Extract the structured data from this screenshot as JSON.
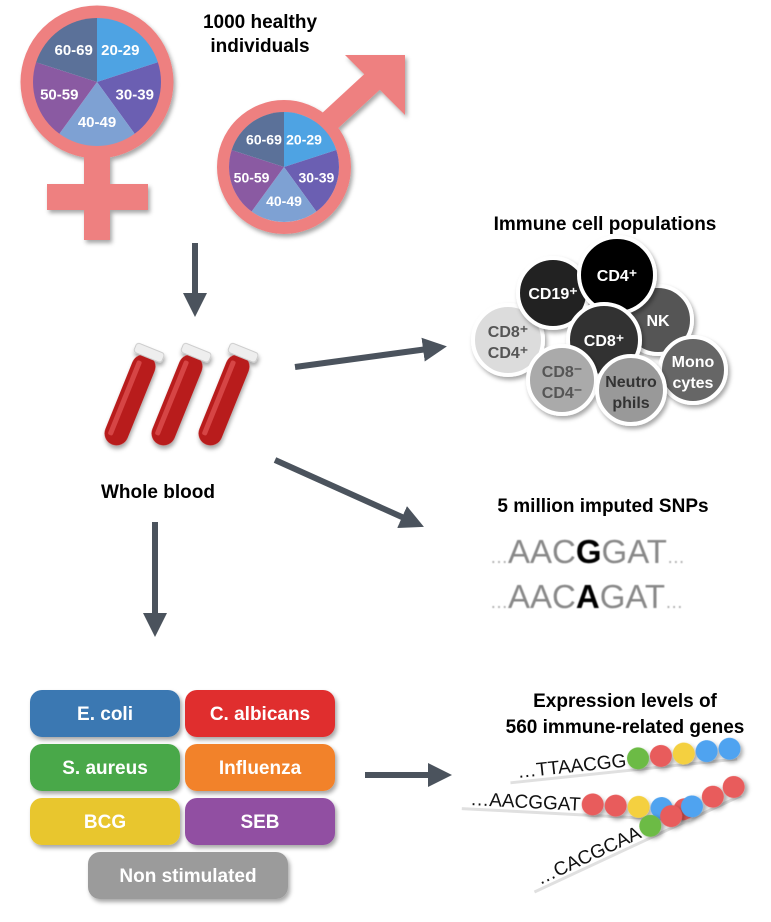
{
  "title": "1000 healthy individuals",
  "title_lines": [
    "1000 healthy",
    "individuals"
  ],
  "age_groups": [
    "20-29",
    "30-39",
    "40-49",
    "50-59",
    "60-69"
  ],
  "age_colors": [
    "#4ea3e3",
    "#6b5fb2",
    "#7ea1d3",
    "#8a5aa2",
    "#5b7199"
  ],
  "symbol_color": "#ee8080",
  "arrow_color": "#4b535d",
  "whole_blood_label": "Whole blood",
  "immune_cells": {
    "title": "Immune cell populations",
    "cells": [
      {
        "line1": "CD8⁺",
        "line2": "CD4⁺",
        "fill": "#dcdcdc",
        "text": "#555555"
      },
      {
        "line1": "CD19⁺",
        "line2": "",
        "fill": "#222222",
        "text": "#ffffff"
      },
      {
        "line1": "NK",
        "line2": "",
        "fill": "#555555",
        "text": "#ffffff"
      },
      {
        "line1": "CD4⁺",
        "line2": "",
        "fill": "#000000",
        "text": "#ffffff"
      },
      {
        "line1": "CD8⁺",
        "line2": "",
        "fill": "#333333",
        "text": "#ffffff"
      },
      {
        "line1": "CD8⁻",
        "line2": "CD4⁻",
        "fill": "#aaaaaa",
        "text": "#555555"
      },
      {
        "line1": "Mono",
        "line2": "cytes",
        "fill": "#666666",
        "text": "#ffffff"
      },
      {
        "line1": "Neutro",
        "line2": "phils",
        "fill": "#999999",
        "text": "#333333"
      }
    ]
  },
  "snps": {
    "title": "5 million imputed SNPs",
    "sequences": [
      {
        "prefix": "…",
        "before": "AAC",
        "variant": "G",
        "after": "GAT",
        "suffix": "…"
      },
      {
        "prefix": "…",
        "before": "AAC",
        "variant": "A",
        "after": "GAT",
        "suffix": "…"
      }
    ]
  },
  "stimuli": [
    {
      "label": "E. coli",
      "color": "#3b78b2"
    },
    {
      "label": "C. albicans",
      "color": "#e02e2e"
    },
    {
      "label": "S. aureus",
      "color": "#4aa84a"
    },
    {
      "label": "Influenza",
      "color": "#f2822c"
    },
    {
      "label": "BCG",
      "color": "#e8c62e"
    },
    {
      "label": "SEB",
      "color": "#9150a2"
    },
    {
      "label": "Non stimulated",
      "color": "#9b9b9b"
    }
  ],
  "expression": {
    "title_lines": [
      "Expression levels of",
      "560 immune-related genes"
    ],
    "genes": [
      {
        "sequence": "…TTAACGG",
        "beads": [
          "#6cbb45",
          "#e85c5c",
          "#f4d03f",
          "#4fa3f0",
          "#4fa3f0"
        ]
      },
      {
        "sequence": "…AACGGAT",
        "beads": [
          "#e85c5c",
          "#e85c5c",
          "#f4d03f",
          "#4fa3f0",
          "#e85c5c"
        ]
      },
      {
        "sequence": "…CACGCAA",
        "beads": [
          "#6cbb45",
          "#e85c5c",
          "#4fa3f0",
          "#e85c5c",
          "#e85c5c"
        ]
      }
    ]
  }
}
